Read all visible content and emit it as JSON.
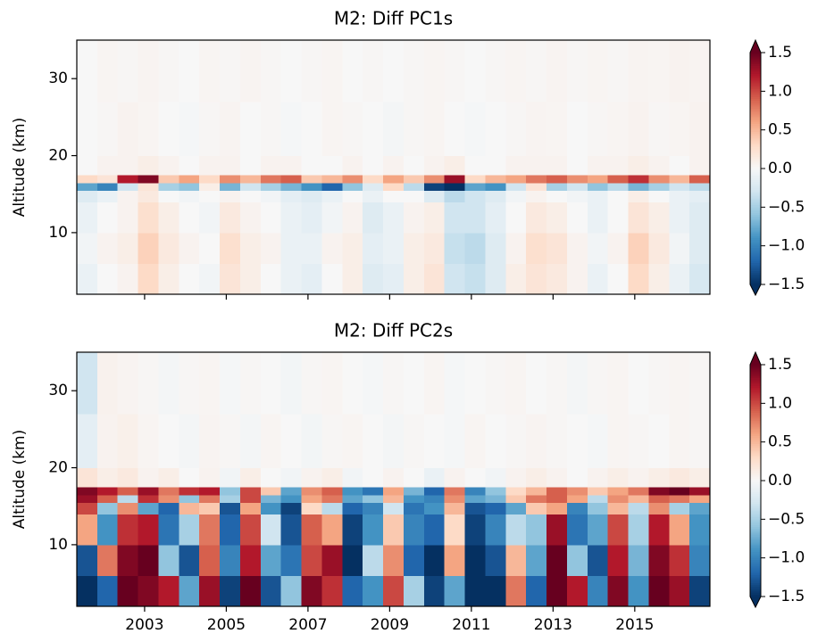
{
  "chart_data": [
    {
      "type": "heatmap",
      "title": "M2: Diff PC1s",
      "ylabel": "Altitude (km)",
      "xlim": [
        2001.34,
        2016.84
      ],
      "ylim": [
        2,
        35
      ],
      "xticks": [
        2003,
        2005,
        2007,
        2009,
        2011,
        2013,
        2015
      ],
      "yticks": [
        10,
        20,
        30
      ],
      "show_xtick_labels": false,
      "xbins": [
        2001.34,
        2001.84,
        2002.34,
        2002.84,
        2003.34,
        2003.84,
        2004.34,
        2004.84,
        2005.34,
        2005.84,
        2006.34,
        2006.84,
        2007.34,
        2007.84,
        2008.34,
        2008.84,
        2009.34,
        2009.84,
        2010.34,
        2010.84,
        2011.34,
        2011.84,
        2012.34,
        2012.84,
        2013.34,
        2013.84,
        2014.34,
        2014.84,
        2015.34,
        2015.84,
        2016.34,
        2016.84
      ],
      "ybins": [
        2,
        6,
        10,
        14,
        15.5,
        16.5,
        17.5,
        20,
        27,
        35
      ],
      "z": [
        [
          -0.1,
          0,
          0.05,
          0.3,
          0.1,
          0,
          -0.05,
          0.2,
          0.1,
          0,
          -0.1,
          -0.15,
          0,
          0.1,
          -0.2,
          -0.15,
          0.1,
          0.2,
          -0.3,
          -0.35,
          -0.2,
          0.1,
          0.2,
          0.15,
          0.05,
          -0.1,
          0,
          0.3,
          0.1,
          -0.1,
          -0.25
        ],
        [
          -0.05,
          0.05,
          0.1,
          0.35,
          0.15,
          0.05,
          0,
          0.25,
          0.1,
          0.05,
          -0.1,
          -0.1,
          0.05,
          0.1,
          -0.15,
          -0.1,
          0.1,
          0.15,
          -0.35,
          -0.4,
          -0.2,
          0.05,
          0.25,
          0.2,
          0.05,
          -0.05,
          0.05,
          0.35,
          0.15,
          -0.05,
          -0.2
        ],
        [
          -0.1,
          0,
          0.05,
          0.25,
          0.1,
          0,
          -0.05,
          0.15,
          0.05,
          0,
          -0.1,
          -0.15,
          -0.05,
          0.05,
          -0.2,
          -0.1,
          0.05,
          0.1,
          -0.3,
          -0.3,
          -0.15,
          0,
          0.15,
          0.1,
          0,
          -0.1,
          0,
          0.2,
          0.1,
          -0.1,
          -0.2
        ],
        [
          -0.2,
          -0.1,
          0.05,
          0.15,
          0,
          -0.05,
          0,
          0.05,
          0,
          -0.05,
          -0.15,
          -0.2,
          -0.1,
          0,
          -0.1,
          0,
          0,
          -0.2,
          -0.4,
          -0.3,
          -0.2,
          -0.05,
          0.05,
          0,
          -0.05,
          -0.1,
          0,
          0.1,
          0,
          -0.1,
          -0.15
        ],
        [
          -0.8,
          -1.0,
          -0.3,
          0.2,
          -0.5,
          -0.6,
          0.1,
          -0.7,
          -0.3,
          -0.5,
          -0.7,
          -0.9,
          -1.2,
          -0.6,
          -0.2,
          0.3,
          -0.4,
          -1.4,
          -1.5,
          -0.8,
          -0.9,
          -0.3,
          0.2,
          -0.5,
          -0.3,
          -0.6,
          -0.4,
          -0.7,
          -0.5,
          -0.3,
          -0.4
        ],
        [
          0.3,
          0.2,
          1.2,
          1.4,
          0.4,
          0.6,
          0.3,
          0.7,
          0.5,
          0.8,
          0.9,
          0.4,
          0.5,
          0.7,
          0.3,
          0.6,
          0.4,
          0.7,
          1.3,
          0.3,
          0.5,
          0.6,
          0.8,
          0.9,
          0.7,
          0.6,
          0.9,
          1.1,
          0.7,
          0.5,
          0.9
        ],
        [
          0,
          0.05,
          0.05,
          0.1,
          0.05,
          0,
          0.05,
          0.05,
          0,
          0.05,
          0.05,
          0,
          0,
          0.05,
          0,
          0.05,
          0,
          0.05,
          0.1,
          0,
          0,
          0.05,
          0.05,
          0.05,
          0,
          0.05,
          0.05,
          0.1,
          0.05,
          0,
          0.05
        ],
        [
          0,
          0.02,
          0.05,
          0.03,
          0,
          -0.02,
          0.02,
          0.04,
          0,
          0.02,
          -0.02,
          0,
          0.03,
          0.02,
          0,
          -0.03,
          0.02,
          0.03,
          0,
          -0.02,
          0,
          0.02,
          0.04,
          0.03,
          0,
          0.02,
          0.03,
          0.05,
          0.02,
          0.03,
          0.05
        ],
        [
          0,
          0.03,
          0.02,
          0.04,
          0.02,
          0,
          0.03,
          0.02,
          0.04,
          0.02,
          0,
          0.02,
          0.03,
          0,
          0.02,
          0,
          0.02,
          0.03,
          0.02,
          0,
          0.02,
          0.03,
          0.02,
          0.04,
          0.02,
          0.03,
          0.02,
          0.04,
          0.03,
          0.05,
          0.04
        ]
      ],
      "clim": [
        -1.5,
        1.5
      ],
      "extend": "both",
      "colors": [
        "#053061",
        "#2166ac",
        "#4393c3",
        "#92c5de",
        "#d1e5f0",
        "#f7f7f7",
        "#fddbc7",
        "#f4a582",
        "#d6604d",
        "#b2182b",
        "#67001f"
      ],
      "cticks": [
        {
          "value": -1.5,
          "label": "−1.5"
        },
        {
          "value": -1,
          "label": "−1.0"
        },
        {
          "value": -0.5,
          "label": "−0.5"
        },
        {
          "value": 0,
          "label": "0.0"
        },
        0.5,
        {
          "value": 1,
          "label": "1.0"
        },
        1.5
      ]
    },
    {
      "type": "heatmap",
      "title": "M2: Diff PC2s",
      "ylabel": "Altitude (km)",
      "xlim": [
        2001.34,
        2016.84
      ],
      "ylim": [
        2,
        35
      ],
      "xticks": [
        2003,
        2005,
        2007,
        2009,
        2011,
        2013,
        2015
      ],
      "yticks": [
        10,
        20,
        30
      ],
      "show_xtick_labels": true,
      "xbins": [
        2001.34,
        2001.84,
        2002.34,
        2002.84,
        2003.34,
        2003.84,
        2004.34,
        2004.84,
        2005.34,
        2005.84,
        2006.34,
        2006.84,
        2007.34,
        2007.84,
        2008.34,
        2008.84,
        2009.34,
        2009.84,
        2010.34,
        2010.84,
        2011.34,
        2011.84,
        2012.34,
        2012.84,
        2013.34,
        2013.84,
        2014.34,
        2014.84,
        2015.34,
        2015.84,
        2016.34,
        2016.84
      ],
      "ybins": [
        2,
        6,
        10,
        14,
        15.5,
        16.5,
        17.5,
        20,
        27,
        35
      ],
      "z": [
        [
          -1.5,
          -1.2,
          1.5,
          1.4,
          1.2,
          -0.8,
          1.3,
          -1.4,
          1.5,
          -1.3,
          -0.6,
          1.4,
          1.1,
          -1.2,
          -0.9,
          1.0,
          -0.5,
          -1.4,
          -0.8,
          -1.5,
          -1.5,
          0.8,
          -1.2,
          1.5,
          1.2,
          -1.0,
          1.4,
          -0.9,
          1.5,
          1.3,
          -1.4
        ],
        [
          -1.3,
          0.8,
          1.4,
          1.5,
          -0.6,
          -1.3,
          0.9,
          -1.0,
          1.2,
          -0.8,
          -1.1,
          1.0,
          1.3,
          -1.5,
          -0.4,
          0.7,
          -1.2,
          -1.5,
          0.6,
          -1.5,
          -1.3,
          0.5,
          -0.8,
          1.5,
          -0.6,
          -1.3,
          1.2,
          -0.7,
          1.4,
          1.1,
          -1.0
        ],
        [
          0.6,
          -0.9,
          1.1,
          1.2,
          -1.1,
          -0.5,
          0.8,
          -1.2,
          1.0,
          -0.3,
          -1.3,
          0.9,
          0.6,
          -1.4,
          -0.9,
          0.4,
          -1.0,
          -1.2,
          0.3,
          -1.4,
          -1.0,
          -0.4,
          -0.6,
          1.3,
          -1.1,
          -0.8,
          1.0,
          -0.5,
          1.2,
          0.6,
          -0.9
        ],
        [
          1.0,
          -0.6,
          0.7,
          -0.8,
          -1.2,
          0.5,
          0.4,
          -1.3,
          0.6,
          -0.9,
          -1.4,
          0.3,
          -0.4,
          -1.2,
          -1.0,
          -0.3,
          -1.1,
          -0.9,
          0.5,
          -1.3,
          -1.2,
          -0.8,
          0.4,
          0.6,
          -1.0,
          -0.6,
          0.5,
          -0.4,
          0.7,
          -0.5,
          -0.8
        ],
        [
          1.3,
          0.9,
          -0.4,
          1.1,
          0.7,
          -0.6,
          0.8,
          -0.5,
          1.0,
          -0.7,
          -0.9,
          0.6,
          0.8,
          -0.8,
          -0.6,
          0.5,
          -0.9,
          -1.0,
          0.7,
          -0.8,
          -0.7,
          0.4,
          0.8,
          0.9,
          0.6,
          -0.4,
          0.7,
          0.5,
          0.9,
          0.8,
          0.6
        ],
        [
          1.4,
          1.2,
          0.9,
          1.3,
          0.8,
          1.1,
          1.2,
          -0.6,
          1.0,
          0.4,
          -0.8,
          0.7,
          0.9,
          -0.9,
          -1.1,
          0.6,
          -0.7,
          -1.2,
          0.8,
          -1.0,
          -0.6,
          0.3,
          0.5,
          0.9,
          0.7,
          0.4,
          0.6,
          0.8,
          1.4,
          1.5,
          1.3
        ],
        [
          0.2,
          0.1,
          0.15,
          0.05,
          0.1,
          0,
          0.05,
          -0.05,
          0.1,
          0,
          -0.05,
          0.05,
          0.1,
          -0.05,
          0,
          0.05,
          0,
          -0.1,
          0.05,
          0,
          -0.05,
          0.05,
          0.1,
          0.05,
          0,
          0.05,
          0.1,
          0.05,
          0.1,
          0.15,
          0.1
        ],
        [
          -0.15,
          0.05,
          0.08,
          0.03,
          0,
          -0.03,
          0.04,
          0.02,
          -0.03,
          0.03,
          0,
          -0.04,
          0.02,
          0.03,
          0,
          -0.03,
          0.02,
          0,
          -0.02,
          0.03,
          0,
          0.02,
          0.04,
          0.02,
          0,
          -0.02,
          0.03,
          0.02,
          0,
          0.03,
          0.02
        ],
        [
          -0.3,
          0.06,
          0.04,
          0.02,
          -0.03,
          0.02,
          0.03,
          -0.02,
          0.02,
          0,
          -0.04,
          0.02,
          0.03,
          0,
          -0.02,
          0.02,
          0,
          0.03,
          -0.02,
          0,
          0.02,
          0.03,
          0,
          0.02,
          -0.03,
          0.02,
          0.03,
          0,
          0.02,
          0.03,
          0.02
        ]
      ],
      "clim": [
        -1.5,
        1.5
      ],
      "extend": "both",
      "colors": [
        "#053061",
        "#2166ac",
        "#4393c3",
        "#92c5de",
        "#d1e5f0",
        "#f7f7f7",
        "#fddbc7",
        "#f4a582",
        "#d6604d",
        "#b2182b",
        "#67001f"
      ],
      "cticks": [
        {
          "value": -1.5,
          "label": "−1.5"
        },
        {
          "value": -1,
          "label": "−1.0"
        },
        {
          "value": -0.5,
          "label": "−0.5"
        },
        {
          "value": 0,
          "label": "0.0"
        },
        0.5,
        {
          "value": 1,
          "label": "1.0"
        },
        1.5
      ]
    }
  ]
}
